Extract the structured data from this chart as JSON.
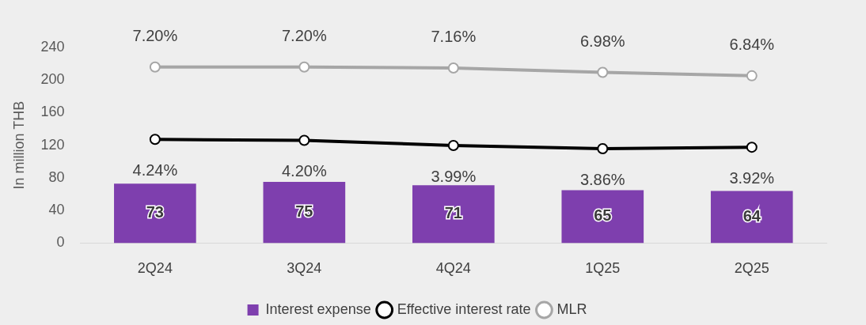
{
  "chart_data": {
    "type": "bar",
    "ylabel": "In million THB",
    "categories": [
      "2Q24",
      "3Q24",
      "4Q24",
      "1Q25",
      "2Q25"
    ],
    "series": [
      {
        "name": "Interest expense",
        "color": "#7e3fae",
        "values": [
          73,
          75,
          71,
          65,
          64
        ],
        "value_labels": [
          "73",
          "75",
          "71",
          "65",
          "64"
        ]
      },
      {
        "name": "Effective interest rate",
        "type": "line",
        "axis": "y2",
        "color": "#000000",
        "values": [
          4.24,
          4.2,
          3.99,
          3.86,
          3.92
        ],
        "value_labels": [
          "4.24%",
          "4.20%",
          "3.99%",
          "3.86%",
          "3.92%"
        ]
      },
      {
        "name": "MLR",
        "type": "line",
        "axis": "y2",
        "color": "#a6a6a6",
        "values": [
          7.2,
          7.2,
          7.16,
          6.98,
          6.84
        ],
        "value_labels": [
          "7.20%",
          "7.20%",
          "7.16%",
          "6.98%",
          "6.84%"
        ]
      }
    ],
    "ylim": [
      0,
      240
    ],
    "yticks": [
      0,
      40,
      80,
      120,
      160,
      200,
      240
    ],
    "grid": false,
    "legend": "bottom",
    "marker": "circle"
  }
}
